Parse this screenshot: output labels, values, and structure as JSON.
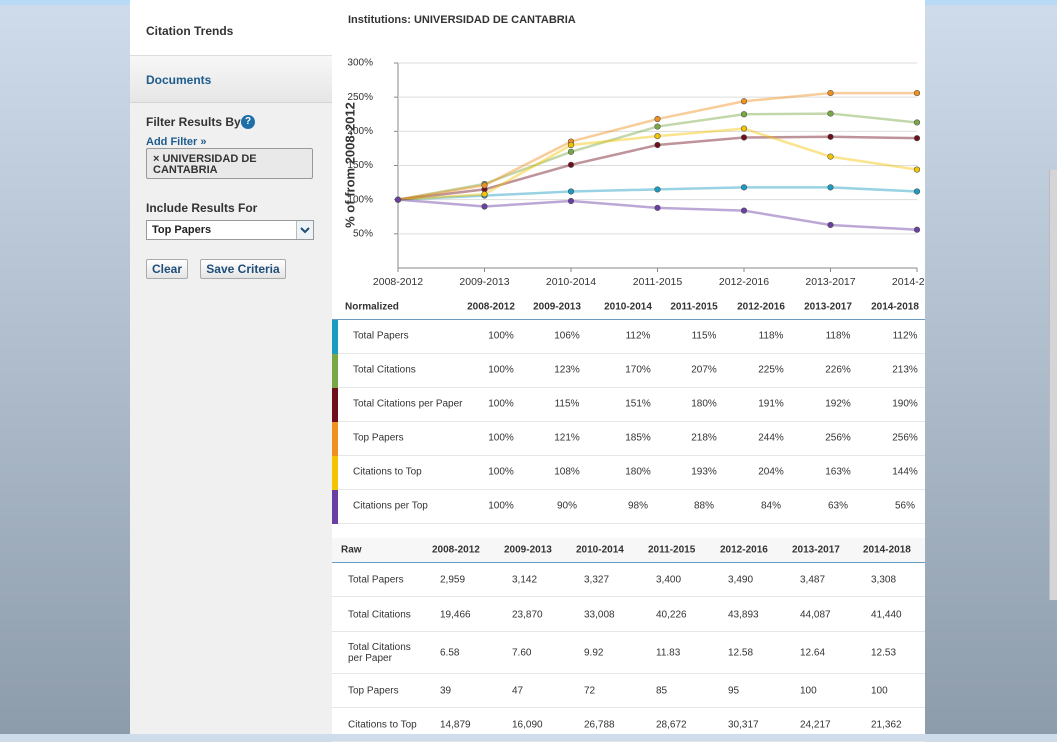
{
  "sidebar": {
    "heading": "Citation Trends",
    "documents": "Documents",
    "filter_title": "Filter Results By",
    "help": "?",
    "add_filter": "Add Filter »",
    "filter_tag": "× UNIVERSIDAD DE CANTABRIA",
    "include_title": "Include Results For",
    "select_value": "Top Papers",
    "clear": "Clear",
    "save": "Save Criteria"
  },
  "chart_data": {
    "type": "line",
    "title": "Institutions: UNIVERSIDAD DE CANTABRIA",
    "ylabel": "% of from 2008-2012",
    "categories": [
      "2008-2012",
      "2009-2013",
      "2010-2014",
      "2011-2015",
      "2012-2016",
      "2013-2017",
      "2014-2018"
    ],
    "ylim": [
      0,
      300
    ],
    "yticks": [
      {
        "value": 50,
        "label": "50%"
      },
      {
        "value": 100,
        "label": "100%"
      },
      {
        "value": 150,
        "label": "150%"
      },
      {
        "value": 200,
        "label": "200%"
      },
      {
        "value": 250,
        "label": "250%"
      },
      {
        "value": 300,
        "label": "300%"
      }
    ],
    "grid": true,
    "series": [
      {
        "name": "Total Papers",
        "color": "#1a9bc2",
        "values": [
          100,
          106,
          112,
          115,
          118,
          118,
          112
        ],
        "value_labels": [
          "100%",
          "106%",
          "112%",
          "115%",
          "118%",
          "118%",
          "112%"
        ]
      },
      {
        "name": "Total Citations",
        "color": "#78a843",
        "values": [
          100,
          123,
          170,
          207,
          225,
          226,
          213
        ],
        "value_labels": [
          "100%",
          "123%",
          "170%",
          "207%",
          "225%",
          "226%",
          "213%"
        ]
      },
      {
        "name": "Total Citations per Paper",
        "color": "#6e0f1c",
        "values": [
          100,
          115,
          151,
          180,
          191,
          192,
          190
        ],
        "value_labels": [
          "100%",
          "115%",
          "151%",
          "180%",
          "191%",
          "192%",
          "190%"
        ]
      },
      {
        "name": "Top Papers",
        "color": "#f0901e",
        "values": [
          100,
          121,
          185,
          218,
          244,
          256,
          256
        ],
        "value_labels": [
          "100%",
          "121%",
          "185%",
          "218%",
          "244%",
          "256%",
          "256%"
        ]
      },
      {
        "name": "Citations to Top",
        "color": "#f4c400",
        "values": [
          100,
          108,
          180,
          193,
          204,
          163,
          144
        ],
        "value_labels": [
          "100%",
          "108%",
          "180%",
          "193%",
          "204%",
          "163%",
          "144%"
        ]
      },
      {
        "name": "Citations per Top",
        "color": "#6a3fa3",
        "values": [
          100,
          90,
          98,
          88,
          84,
          63,
          56
        ],
        "value_labels": [
          "100%",
          "90%",
          "98%",
          "88%",
          "84%",
          "63%",
          "56%"
        ]
      }
    ]
  },
  "normalized_table": {
    "header": "Normalized"
  },
  "raw_table": {
    "header": "Raw",
    "rows": [
      {
        "name": "Total Papers",
        "values": [
          "2,959",
          "3,142",
          "3,327",
          "3,400",
          "3,490",
          "3,487",
          "3,308"
        ]
      },
      {
        "name": "Total Citations",
        "values": [
          "19,466",
          "23,870",
          "33,008",
          "40,226",
          "43,893",
          "44,087",
          "41,440"
        ]
      },
      {
        "name": "Total Citations per Paper",
        "values": [
          "6.58",
          "7.60",
          "9.92",
          "11.83",
          "12.58",
          "12.64",
          "12.53"
        ]
      },
      {
        "name": "Top Papers",
        "values": [
          "39",
          "47",
          "72",
          "85",
          "95",
          "100",
          "100"
        ]
      },
      {
        "name": "Citations to Top",
        "values": [
          "14,879",
          "16,090",
          "26,788",
          "28,672",
          "30,317",
          "24,217",
          "21,362"
        ]
      }
    ]
  }
}
